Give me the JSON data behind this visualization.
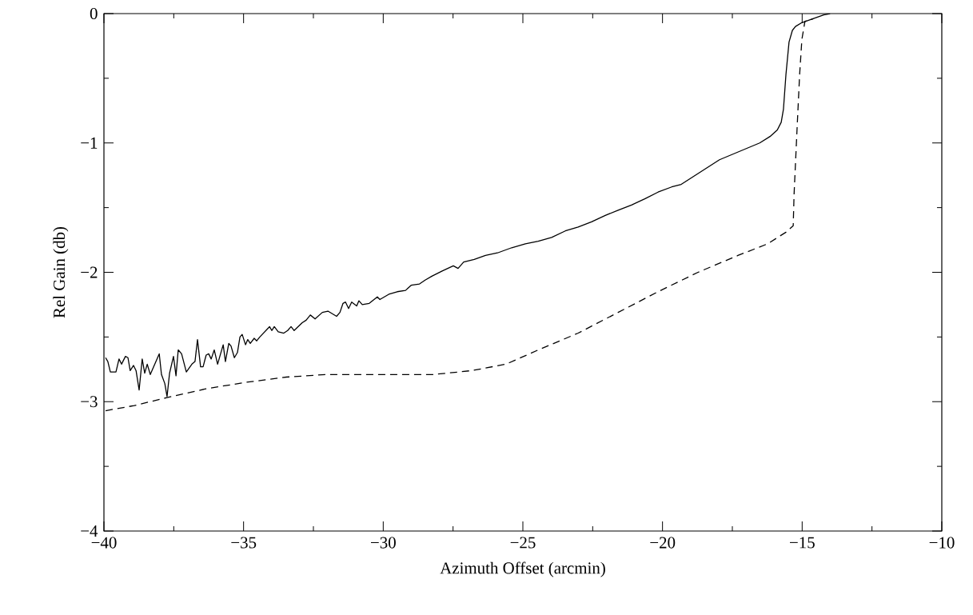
{
  "chart_data": {
    "type": "line",
    "xlabel": "Azimuth Offset (arcmin)",
    "ylabel": "Rel Gain (db)",
    "xlim": [
      -40,
      -10
    ],
    "ylim": [
      -4,
      0
    ],
    "xticks": [
      {
        "value": -40,
        "label": "−40"
      },
      {
        "value": -37.5,
        "label": null
      },
      {
        "value": -35,
        "label": "−35"
      },
      {
        "value": -32.5,
        "label": null
      },
      {
        "value": -30,
        "label": "−30"
      },
      {
        "value": -27.5,
        "label": null
      },
      {
        "value": -25,
        "label": "−25"
      },
      {
        "value": -22.5,
        "label": null
      },
      {
        "value": -20,
        "label": "−20"
      },
      {
        "value": -17.5,
        "label": null
      },
      {
        "value": -15,
        "label": "−15"
      },
      {
        "value": -12.5,
        "label": null
      },
      {
        "value": -10,
        "label": "−10"
      }
    ],
    "yticks": [
      {
        "value": -4,
        "label": "−4"
      },
      {
        "value": -3.5,
        "label": null
      },
      {
        "value": -3,
        "label": "−3"
      },
      {
        "value": -2.5,
        "label": null
      },
      {
        "value": -2,
        "label": "−2"
      },
      {
        "value": -1.5,
        "label": null
      },
      {
        "value": -1,
        "label": "−1"
      },
      {
        "value": -0.5,
        "label": null
      },
      {
        "value": 0,
        "label": "0"
      }
    ],
    "grid": false,
    "marker": "none",
    "series": [
      {
        "color": "#000000",
        "line_style": "solid",
        "x": [
          -39.94,
          -39.86,
          -39.77,
          -39.57,
          -39.46,
          -39.37,
          -39.23,
          -39.14,
          -39.06,
          -38.94,
          -38.85,
          -38.74,
          -38.63,
          -38.54,
          -38.45,
          -38.34,
          -38.02,
          -37.94,
          -37.82,
          -37.74,
          -37.65,
          -37.51,
          -37.42,
          -37.34,
          -37.22,
          -37.05,
          -36.85,
          -36.74,
          -36.65,
          -36.54,
          -36.45,
          -36.34,
          -36.25,
          -36.16,
          -36.05,
          -35.93,
          -35.85,
          -35.73,
          -35.65,
          -35.53,
          -35.45,
          -35.33,
          -35.22,
          -35.13,
          -35.05,
          -34.93,
          -34.85,
          -34.76,
          -34.62,
          -34.53,
          -34.42,
          -34.07,
          -33.99,
          -33.9,
          -33.76,
          -33.56,
          -33.42,
          -33.3,
          -33.19,
          -32.9,
          -32.76,
          -32.61,
          -32.44,
          -32.18,
          -31.98,
          -31.67,
          -31.55,
          -31.44,
          -31.35,
          -31.24,
          -31.13,
          -30.95,
          -30.87,
          -30.75,
          -30.5,
          -30.21,
          -30.12,
          -29.8,
          -29.5,
          -29.2,
          -29.0,
          -28.7,
          -28.5,
          -28.26,
          -27.89,
          -27.49,
          -27.32,
          -27.12,
          -26.74,
          -26.34,
          -25.91,
          -25.4,
          -24.91,
          -24.45,
          -23.97,
          -23.48,
          -23.02,
          -22.54,
          -22.05,
          -21.59,
          -21.11,
          -20.62,
          -20.16,
          -19.67,
          -19.33,
          -17.96,
          -16.52,
          -16.15,
          -15.89,
          -15.75,
          -15.67,
          -15.58,
          -15.47,
          -15.35,
          -15.24,
          -15.01,
          -14.61,
          -14.23,
          -14.0
        ],
        "values": [
          -2.66,
          -2.69,
          -2.77,
          -2.77,
          -2.67,
          -2.71,
          -2.65,
          -2.66,
          -2.76,
          -2.72,
          -2.76,
          -2.91,
          -2.67,
          -2.78,
          -2.71,
          -2.79,
          -2.63,
          -2.79,
          -2.86,
          -2.96,
          -2.78,
          -2.65,
          -2.8,
          -2.6,
          -2.63,
          -2.77,
          -2.71,
          -2.69,
          -2.52,
          -2.73,
          -2.73,
          -2.64,
          -2.63,
          -2.67,
          -2.6,
          -2.71,
          -2.65,
          -2.56,
          -2.69,
          -2.55,
          -2.57,
          -2.66,
          -2.62,
          -2.5,
          -2.48,
          -2.56,
          -2.52,
          -2.55,
          -2.51,
          -2.53,
          -2.5,
          -2.42,
          -2.45,
          -2.42,
          -2.46,
          -2.47,
          -2.45,
          -2.42,
          -2.45,
          -2.39,
          -2.37,
          -2.33,
          -2.36,
          -2.31,
          -2.3,
          -2.34,
          -2.31,
          -2.24,
          -2.23,
          -2.28,
          -2.23,
          -2.26,
          -2.22,
          -2.25,
          -2.24,
          -2.19,
          -2.21,
          -2.17,
          -2.15,
          -2.14,
          -2.1,
          -2.09,
          -2.06,
          -2.03,
          -1.99,
          -1.95,
          -1.97,
          -1.92,
          -1.9,
          -1.87,
          -1.85,
          -1.81,
          -1.78,
          -1.76,
          -1.73,
          -1.68,
          -1.65,
          -1.61,
          -1.56,
          -1.52,
          -1.48,
          -1.43,
          -1.38,
          -1.34,
          -1.32,
          -1.13,
          -1.0,
          -0.95,
          -0.9,
          -0.84,
          -0.74,
          -0.47,
          -0.22,
          -0.13,
          -0.1,
          -0.07,
          -0.04,
          -0.01,
          0.0
        ]
      },
      {
        "color": "#000000",
        "line_style": "dashed",
        "x": [
          -39.94,
          -38.91,
          -37.77,
          -36.34,
          -34.9,
          -33.47,
          -32.04,
          -30.61,
          -28.2,
          -26.83,
          -25.6,
          -24.45,
          -23.02,
          -21.59,
          -20.16,
          -18.73,
          -17.3,
          -16.24,
          -15.58,
          -15.32,
          -15.29,
          -15.18,
          -15.09,
          -15.01,
          -14.9,
          -14.6
        ],
        "values": [
          -3.07,
          -3.03,
          -2.97,
          -2.9,
          -2.85,
          -2.81,
          -2.79,
          -2.79,
          -2.79,
          -2.76,
          -2.71,
          -2.6,
          -2.47,
          -2.31,
          -2.15,
          -2.0,
          -1.87,
          -1.78,
          -1.69,
          -1.64,
          -1.4,
          -0.88,
          -0.47,
          -0.2,
          -0.06,
          -0.04
        ]
      }
    ]
  }
}
